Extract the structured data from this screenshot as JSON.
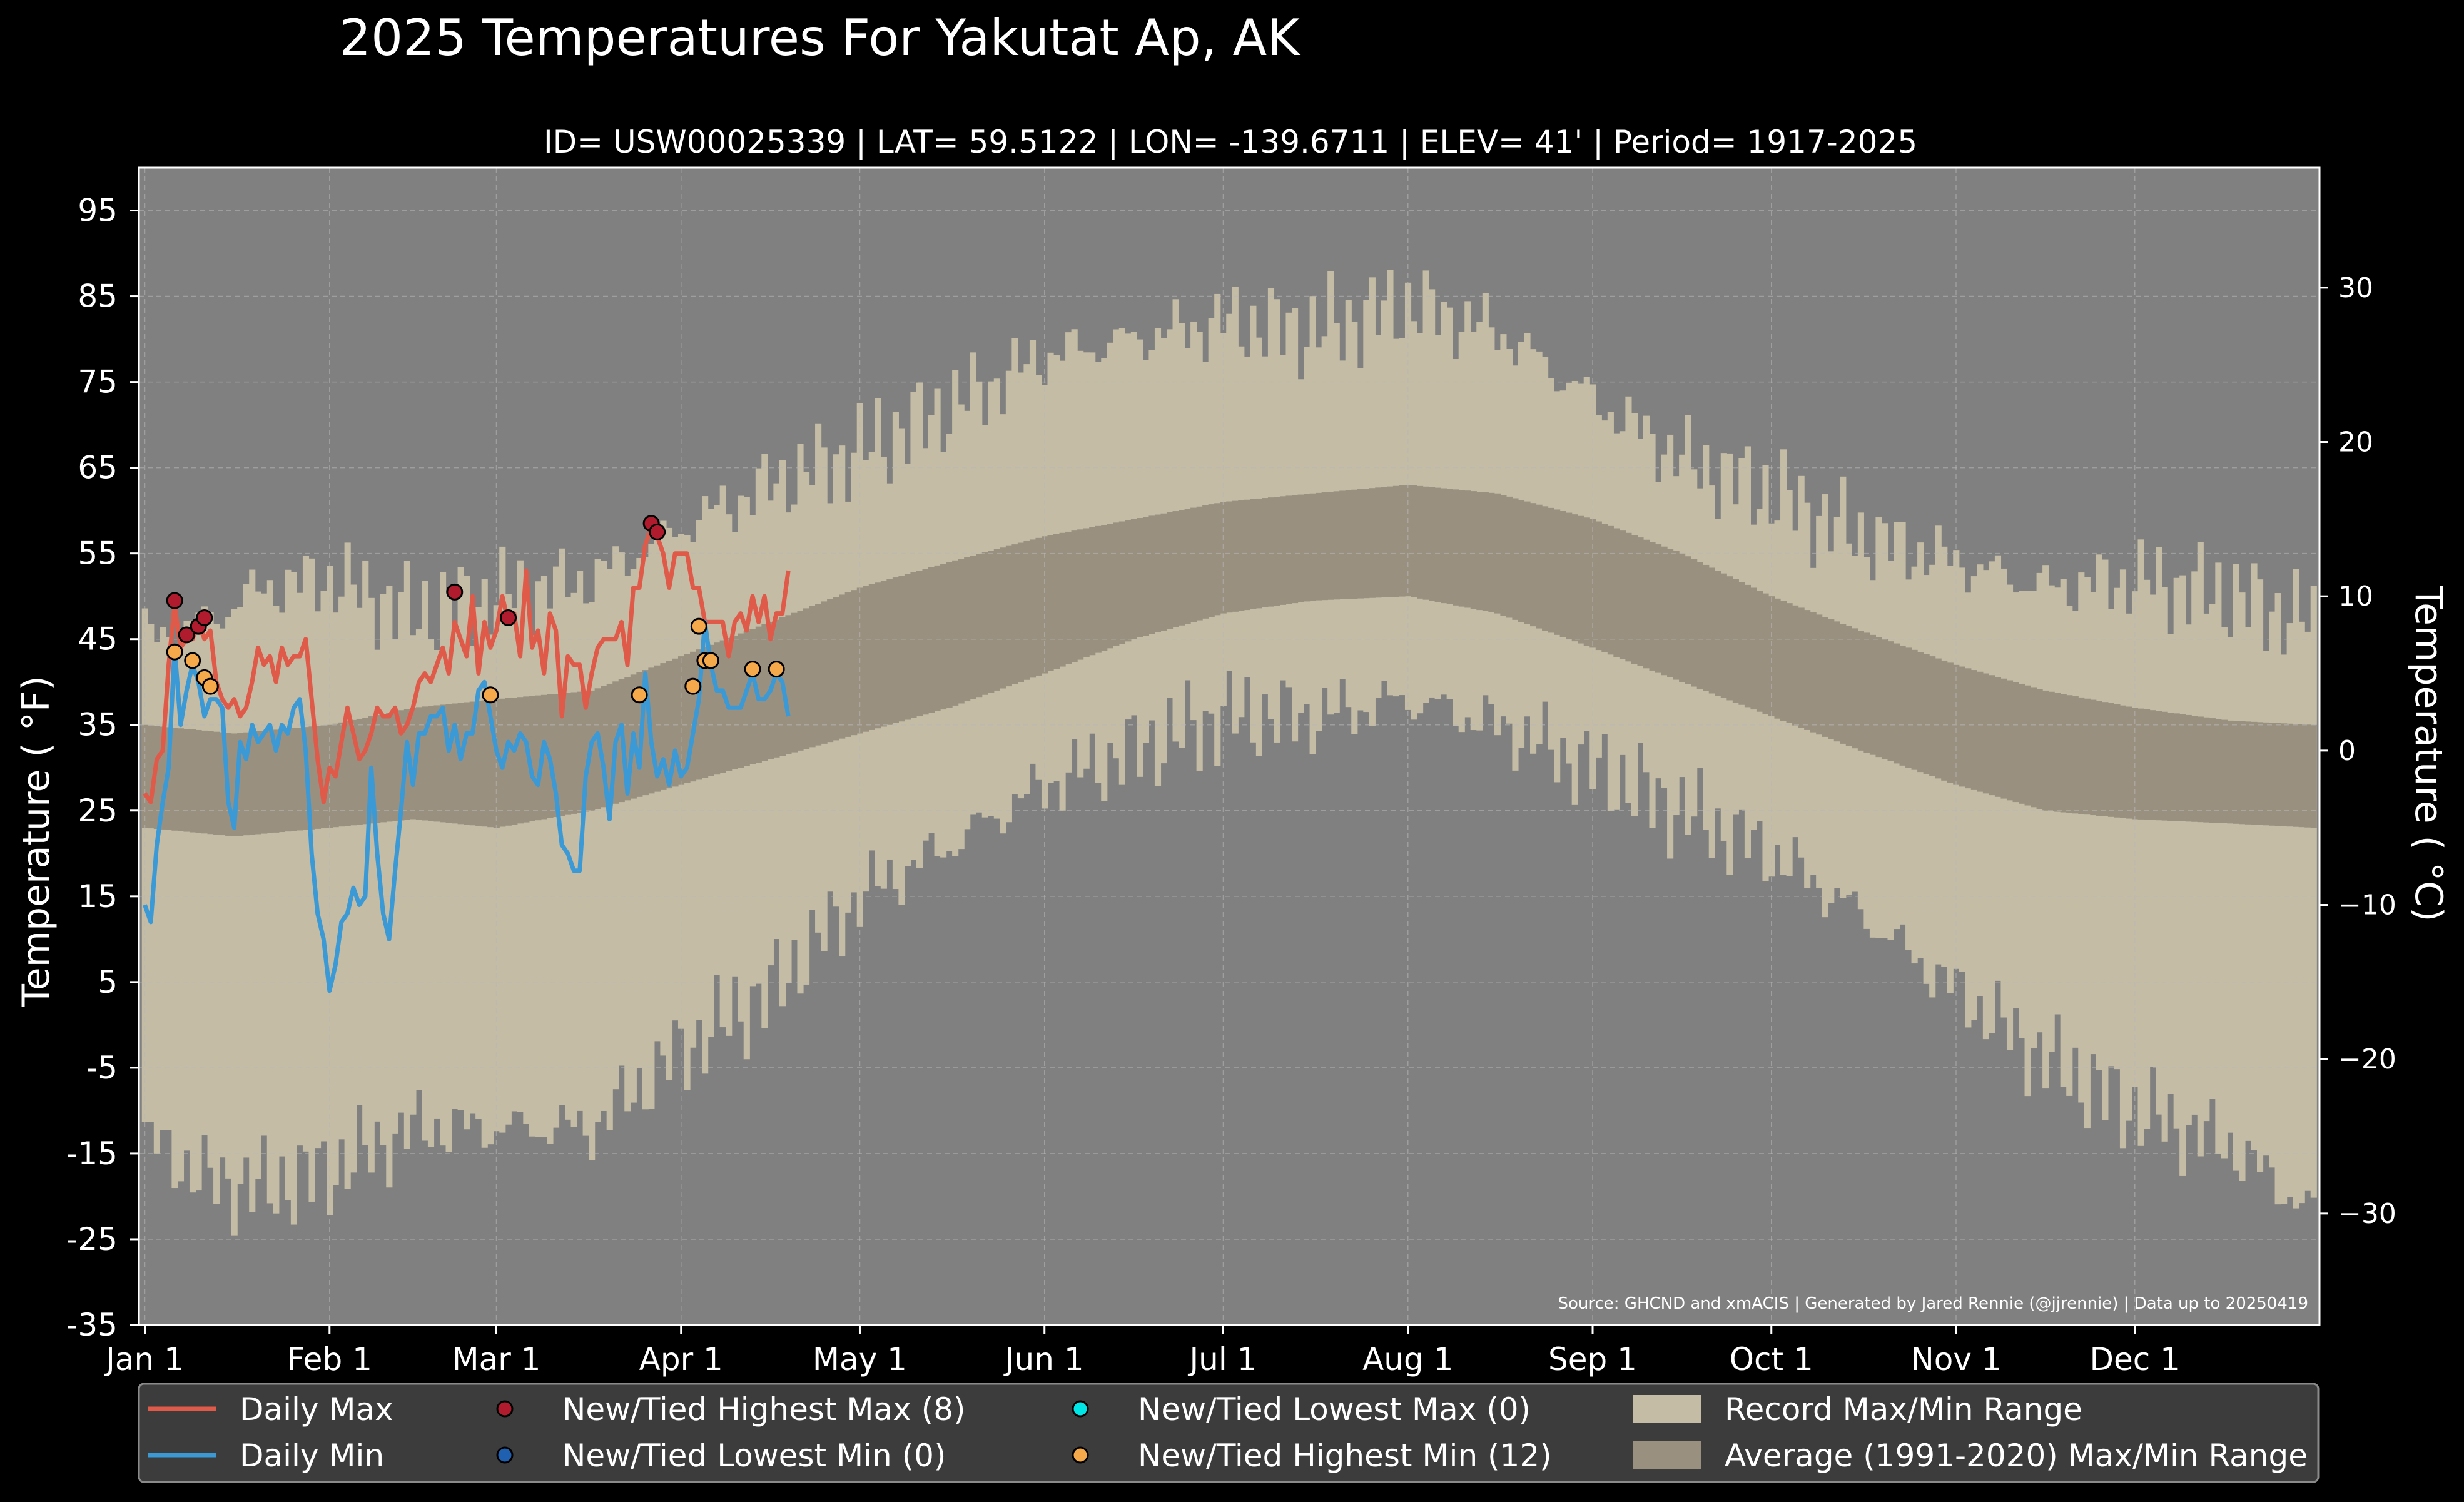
{
  "colors": {
    "background": "#000000",
    "plot_bg": "#808080",
    "record_band": "#c4bca4",
    "average_band": "#9a9080",
    "daily_max": "#e05a4a",
    "daily_min": "#3b9ad6",
    "record_high_max_dot": "#b01c2e",
    "record_low_min_dot": "#2060b0",
    "record_low_max_dot": "#00e5e5",
    "record_high_min_dot": "#f5a94a",
    "legend_bg": "#3c3c3c",
    "grid": "#b8b8b8"
  },
  "chart_data": {
    "type": "area",
    "title": "2025 Temperatures For Yakutat Ap, AK",
    "subtitle": "ID= USW00025339 | LAT= 59.5122 | LON= -139.6711 | ELEV= 41' | Period= 1917-2025",
    "ylabel_left": "Temperature ( $^\\circ$F)",
    "ylabel_left_display": "Temperature ( °F)",
    "ylabel_right_display": "Temperature ( °C)",
    "ylim": [
      -35,
      100
    ],
    "xlim": [
      -1,
      365
    ],
    "y_ticks": [
      -35,
      -25,
      -15,
      -5,
      5,
      15,
      25,
      35,
      45,
      55,
      65,
      75,
      85,
      95
    ],
    "y_ticks_right_c": [
      -30,
      -20,
      -10,
      0,
      10,
      20,
      30
    ],
    "x_ticks": [
      {
        "label": "Jan 1",
        "day": 0
      },
      {
        "label": "Feb 1",
        "day": 31
      },
      {
        "label": "Mar 1",
        "day": 59
      },
      {
        "label": "Apr 1",
        "day": 90
      },
      {
        "label": "May 1",
        "day": 120
      },
      {
        "label": "Jun 1",
        "day": 151
      },
      {
        "label": "Jul 1",
        "day": 181
      },
      {
        "label": "Aug 1",
        "day": 212
      },
      {
        "label": "Sep 1",
        "day": 243
      },
      {
        "label": "Oct 1",
        "day": 273
      },
      {
        "label": "Nov 1",
        "day": 304
      },
      {
        "label": "Dec 1",
        "day": 334
      }
    ],
    "grid": true,
    "source": "Source: GHCND and xmACIS | Generated by Jared Rennie (@jjrennie) | Data up to 20250419",
    "record_max_keypoints": [
      [
        0,
        45
      ],
      [
        10,
        47
      ],
      [
        20,
        51
      ],
      [
        31,
        52
      ],
      [
        45,
        48
      ],
      [
        59,
        50
      ],
      [
        75,
        52
      ],
      [
        90,
        58
      ],
      [
        105,
        63
      ],
      [
        120,
        67
      ],
      [
        135,
        72
      ],
      [
        151,
        78
      ],
      [
        166,
        80
      ],
      [
        181,
        82
      ],
      [
        196,
        81
      ],
      [
        212,
        84
      ],
      [
        227,
        81
      ],
      [
        243,
        73
      ],
      [
        258,
        66
      ],
      [
        273,
        62
      ],
      [
        288,
        57
      ],
      [
        304,
        54
      ],
      [
        319,
        51
      ],
      [
        334,
        52
      ],
      [
        350,
        50
      ],
      [
        364,
        47
      ]
    ],
    "record_min_keypoints": [
      [
        0,
        -13
      ],
      [
        10,
        -18
      ],
      [
        20,
        -19
      ],
      [
        31,
        -17
      ],
      [
        45,
        -12
      ],
      [
        59,
        -12
      ],
      [
        75,
        -12
      ],
      [
        90,
        -3
      ],
      [
        105,
        4
      ],
      [
        120,
        15
      ],
      [
        135,
        21
      ],
      [
        151,
        28
      ],
      [
        166,
        32
      ],
      [
        181,
        36
      ],
      [
        196,
        36
      ],
      [
        212,
        38
      ],
      [
        227,
        35
      ],
      [
        243,
        30
      ],
      [
        258,
        25
      ],
      [
        273,
        20
      ],
      [
        288,
        13
      ],
      [
        304,
        4
      ],
      [
        319,
        -4
      ],
      [
        334,
        -10
      ],
      [
        350,
        -14
      ],
      [
        364,
        -22
      ]
    ],
    "average_max_keypoints": [
      [
        0,
        35
      ],
      [
        15,
        34
      ],
      [
        31,
        35
      ],
      [
        45,
        37
      ],
      [
        59,
        38
      ],
      [
        75,
        39
      ],
      [
        90,
        43
      ],
      [
        105,
        47
      ],
      [
        120,
        51
      ],
      [
        135,
        54
      ],
      [
        151,
        57
      ],
      [
        166,
        59
      ],
      [
        181,
        61
      ],
      [
        196,
        62
      ],
      [
        212,
        63
      ],
      [
        227,
        62
      ],
      [
        243,
        59
      ],
      [
        258,
        55
      ],
      [
        273,
        50
      ],
      [
        288,
        46
      ],
      [
        304,
        42
      ],
      [
        319,
        39
      ],
      [
        334,
        37
      ],
      [
        350,
        35.5
      ],
      [
        364,
        35
      ]
    ],
    "average_min_keypoints": [
      [
        0,
        23
      ],
      [
        15,
        22
      ],
      [
        31,
        23
      ],
      [
        45,
        24
      ],
      [
        59,
        23
      ],
      [
        75,
        25
      ],
      [
        90,
        28
      ],
      [
        105,
        31
      ],
      [
        120,
        34
      ],
      [
        135,
        37
      ],
      [
        151,
        41
      ],
      [
        166,
        45
      ],
      [
        181,
        48
      ],
      [
        196,
        49.5
      ],
      [
        212,
        50
      ],
      [
        227,
        48
      ],
      [
        243,
        44
      ],
      [
        258,
        40
      ],
      [
        273,
        36
      ],
      [
        288,
        32
      ],
      [
        304,
        28
      ],
      [
        319,
        25
      ],
      [
        334,
        24
      ],
      [
        350,
        23.5
      ],
      [
        364,
        23
      ]
    ],
    "series": [
      {
        "name": "Daily Max",
        "x": [
          0,
          1,
          2,
          3,
          4,
          5,
          6,
          7,
          8,
          9,
          10,
          11,
          12,
          13,
          14,
          15,
          16,
          17,
          18,
          19,
          20,
          21,
          22,
          23,
          24,
          25,
          26,
          27,
          28,
          29,
          30,
          31,
          32,
          33,
          34,
          35,
          36,
          37,
          38,
          39,
          40,
          41,
          42,
          43,
          44,
          45,
          46,
          47,
          48,
          49,
          50,
          51,
          52,
          53,
          54,
          55,
          56,
          57,
          58,
          59,
          60,
          61,
          62,
          63,
          64,
          65,
          66,
          67,
          68,
          69,
          70,
          71,
          72,
          73,
          74,
          75,
          76,
          77,
          78,
          79,
          80,
          81,
          82,
          83,
          84,
          85,
          86,
          87,
          88,
          89,
          90,
          91,
          92,
          93,
          94,
          95,
          96,
          97,
          98,
          99,
          100,
          101,
          102,
          103,
          104,
          105,
          106,
          107,
          108
        ],
        "values": [
          27,
          26,
          31,
          32,
          42,
          49,
          44,
          45,
          45,
          47,
          45,
          46,
          40,
          38,
          37,
          38,
          36,
          37,
          40,
          44,
          42,
          43,
          40,
          44,
          42,
          43,
          43,
          45,
          38,
          31,
          26,
          30,
          29,
          33,
          37,
          34,
          31,
          32,
          34,
          37,
          36,
          36,
          37,
          34,
          35,
          37,
          40,
          41,
          40,
          42,
          44,
          41,
          47,
          45,
          43,
          50,
          41,
          47,
          44,
          46,
          50,
          47,
          48,
          43,
          53,
          44,
          46,
          41,
          48,
          46,
          36,
          43,
          42,
          42,
          37,
          41,
          44,
          45,
          45,
          45,
          47,
          42,
          51,
          51,
          56,
          58,
          57,
          55,
          51,
          55,
          55,
          55,
          51,
          51,
          47,
          47,
          47,
          47,
          43,
          47,
          48,
          46,
          50,
          47,
          50,
          45,
          48,
          48,
          53
        ]
      },
      {
        "name": "Daily Min",
        "x": [
          0,
          1,
          2,
          3,
          4,
          5,
          6,
          7,
          8,
          9,
          10,
          11,
          12,
          13,
          14,
          15,
          16,
          17,
          18,
          19,
          20,
          21,
          22,
          23,
          24,
          25,
          26,
          27,
          28,
          29,
          30,
          31,
          32,
          33,
          34,
          35,
          36,
          37,
          38,
          39,
          40,
          41,
          42,
          43,
          44,
          45,
          46,
          47,
          48,
          49,
          50,
          51,
          52,
          53,
          54,
          55,
          56,
          57,
          58,
          59,
          60,
          61,
          62,
          63,
          64,
          65,
          66,
          67,
          68,
          69,
          70,
          71,
          72,
          73,
          74,
          75,
          76,
          77,
          78,
          79,
          80,
          81,
          82,
          83,
          84,
          85,
          86,
          87,
          88,
          89,
          90,
          91,
          92,
          93,
          94,
          95,
          96,
          97,
          98,
          99,
          100,
          101,
          102,
          103,
          104,
          105,
          106,
          107,
          108
        ],
        "values": [
          14,
          12,
          21,
          26,
          30,
          44,
          35,
          39,
          42,
          40,
          36,
          38,
          38,
          37,
          26,
          23,
          33,
          31,
          35,
          33,
          34,
          35,
          32,
          35,
          34,
          37,
          38,
          32,
          20,
          13,
          10,
          4,
          7,
          12,
          13,
          16,
          14,
          15,
          30,
          20,
          13,
          10,
          18,
          25,
          33,
          28,
          34,
          34,
          36,
          36,
          37,
          32,
          35,
          31,
          34,
          34,
          39,
          40,
          36,
          32,
          30,
          33,
          32,
          34,
          33,
          29,
          28,
          33,
          31,
          27,
          21,
          20,
          18,
          18,
          29,
          33,
          34,
          30,
          24,
          33,
          35,
          27,
          34,
          30,
          41,
          33,
          29,
          31,
          28,
          32,
          29,
          30,
          34,
          38,
          47,
          42,
          39,
          39,
          37,
          37,
          37,
          39,
          41,
          38,
          38,
          39,
          41,
          40,
          36
        ]
      }
    ],
    "record_high_max_points": {
      "name": "New/Tied Highest Max (8)",
      "x": [
        5,
        7,
        9,
        10,
        52,
        61,
        85,
        86
      ],
      "values": [
        49.5,
        45.5,
        46.5,
        47.5,
        50.5,
        47.5,
        58.5,
        57.5
      ]
    },
    "record_high_min_points": {
      "name": "New/Tied Highest Min (12)",
      "x": [
        5,
        8,
        10,
        11,
        58,
        83,
        92,
        93,
        94,
        95,
        102,
        106
      ],
      "values": [
        43.5,
        42.5,
        40.5,
        39.5,
        38.5,
        38.5,
        39.5,
        46.5,
        42.5,
        42.5,
        41.5,
        41.5
      ]
    },
    "legend": [
      {
        "key": "daily_max",
        "label": "Daily Max"
      },
      {
        "key": "daily_min",
        "label": "Daily Min"
      },
      {
        "key": "record_high_max_dot",
        "label": "New/Tied Highest Max (8)"
      },
      {
        "key": "record_low_min_dot",
        "label": "New/Tied Lowest Min (0)"
      },
      {
        "key": "record_low_max_dot",
        "label": "New/Tied Lowest Max (0)"
      },
      {
        "key": "record_high_min_dot",
        "label": "New/Tied Highest Min (12)"
      },
      {
        "key": "record_band",
        "label": "Record Max/Min Range"
      },
      {
        "key": "average_band",
        "label": "Average (1991-2020) Max/Min Range"
      }
    ],
    "legend_placement": "bottom"
  }
}
